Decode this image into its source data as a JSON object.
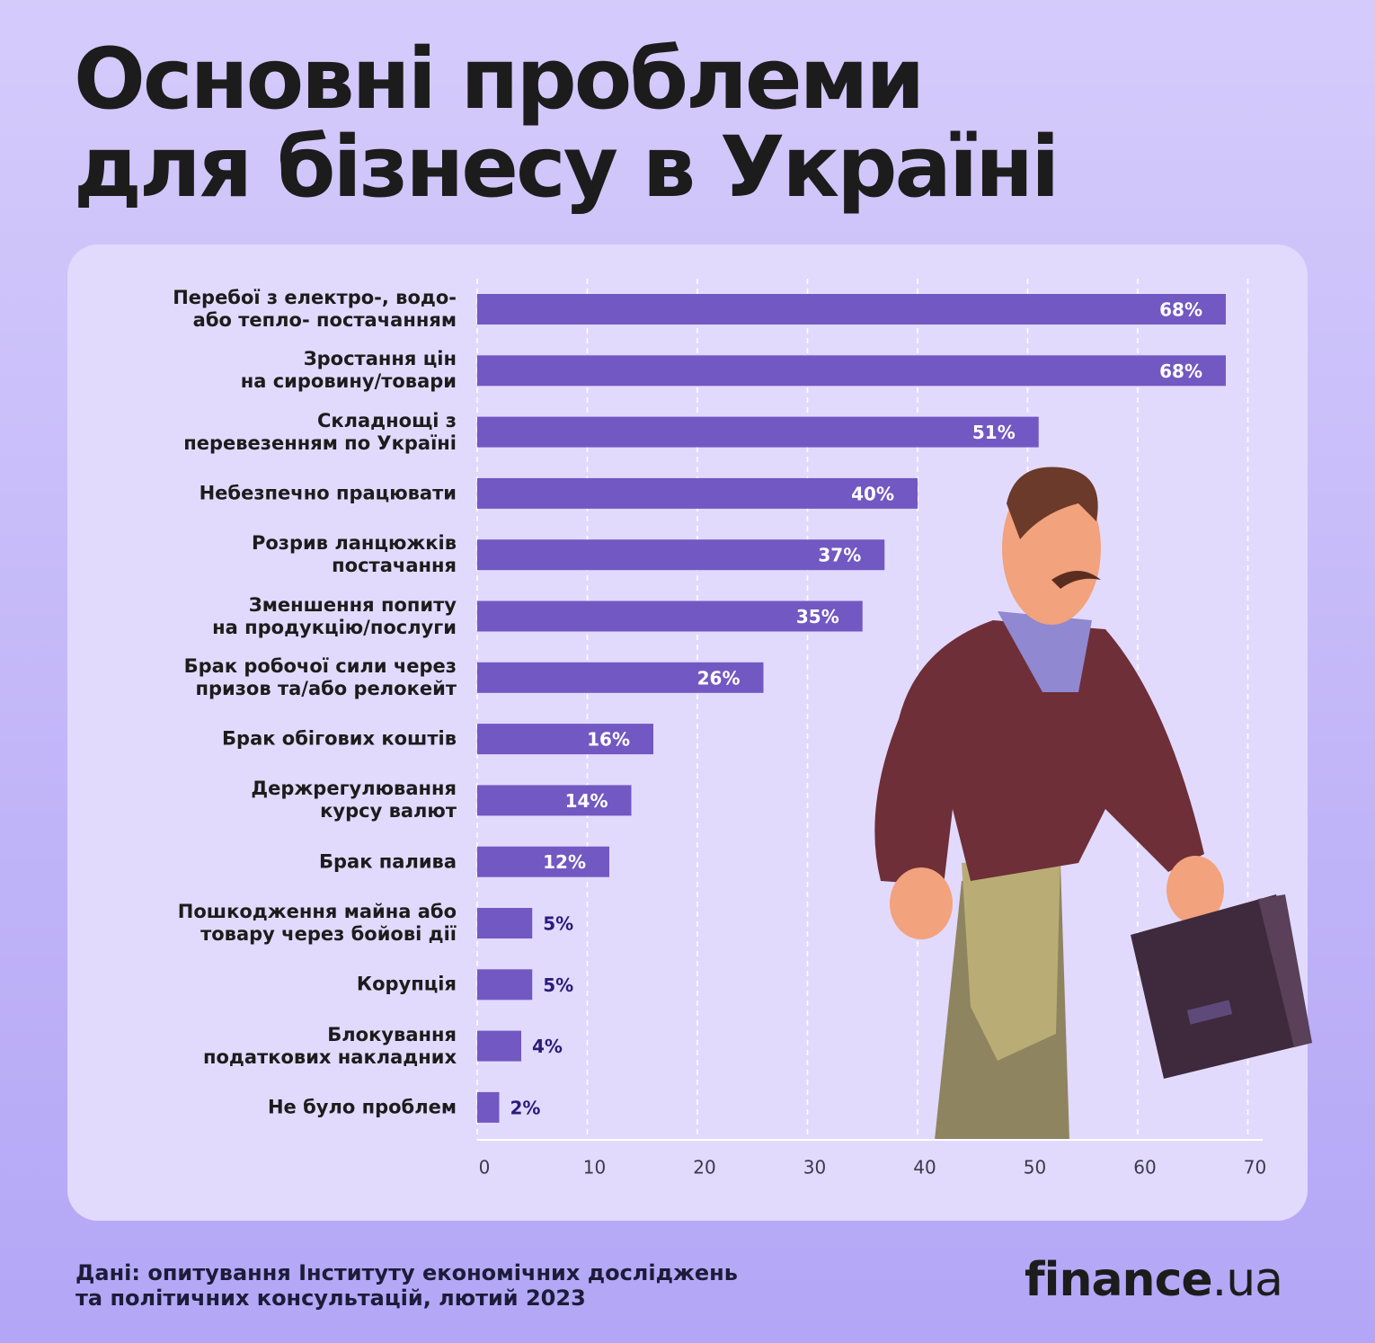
{
  "title": "Основні проблеми\nдля бізнесу в Україні",
  "chart_data": {
    "type": "bar",
    "orientation": "horizontal",
    "categories": [
      "Перебої з електро-, водо-\nабо  тепло- постачанням",
      "Зростання цін\nна сировину/товари",
      "Складнощі з\nперевезенням  по Україні",
      "Небезпечно працювати",
      "Розрив ланцюжків\nпостачання",
      "Зменшення попиту\nна продукцію/послуги",
      "Брак робочої сили  через\nпризов та/або релокейт",
      "Брак обігових коштів",
      "Держрегулювання\nкурсу валют",
      "Брак палива",
      "Пошкодження майна або\nтовару через бойові дії",
      "Корупція",
      "Блокування\nподаткових накладних",
      "Не було проблем"
    ],
    "values": [
      68,
      68,
      51,
      40,
      37,
      35,
      26,
      16,
      14,
      12,
      5,
      5,
      4,
      2
    ],
    "value_labels": [
      "68%",
      "68%",
      "51%",
      "40%",
      "37%",
      "35%",
      "26%",
      "16%",
      "14%",
      "12%",
      "5%",
      "5%",
      "4%",
      "2%"
    ],
    "color": "#7258c2",
    "xlim": [
      0,
      71.5
    ],
    "xticks": [
      0,
      10,
      20,
      30,
      40,
      50,
      60,
      70
    ],
    "grid": true
  },
  "source": "Дані: опитування  Інституту економічних досліджень\nта політичних консультацій,  лютий 2023",
  "logo": {
    "name": "finance",
    "domain": ".ua"
  }
}
